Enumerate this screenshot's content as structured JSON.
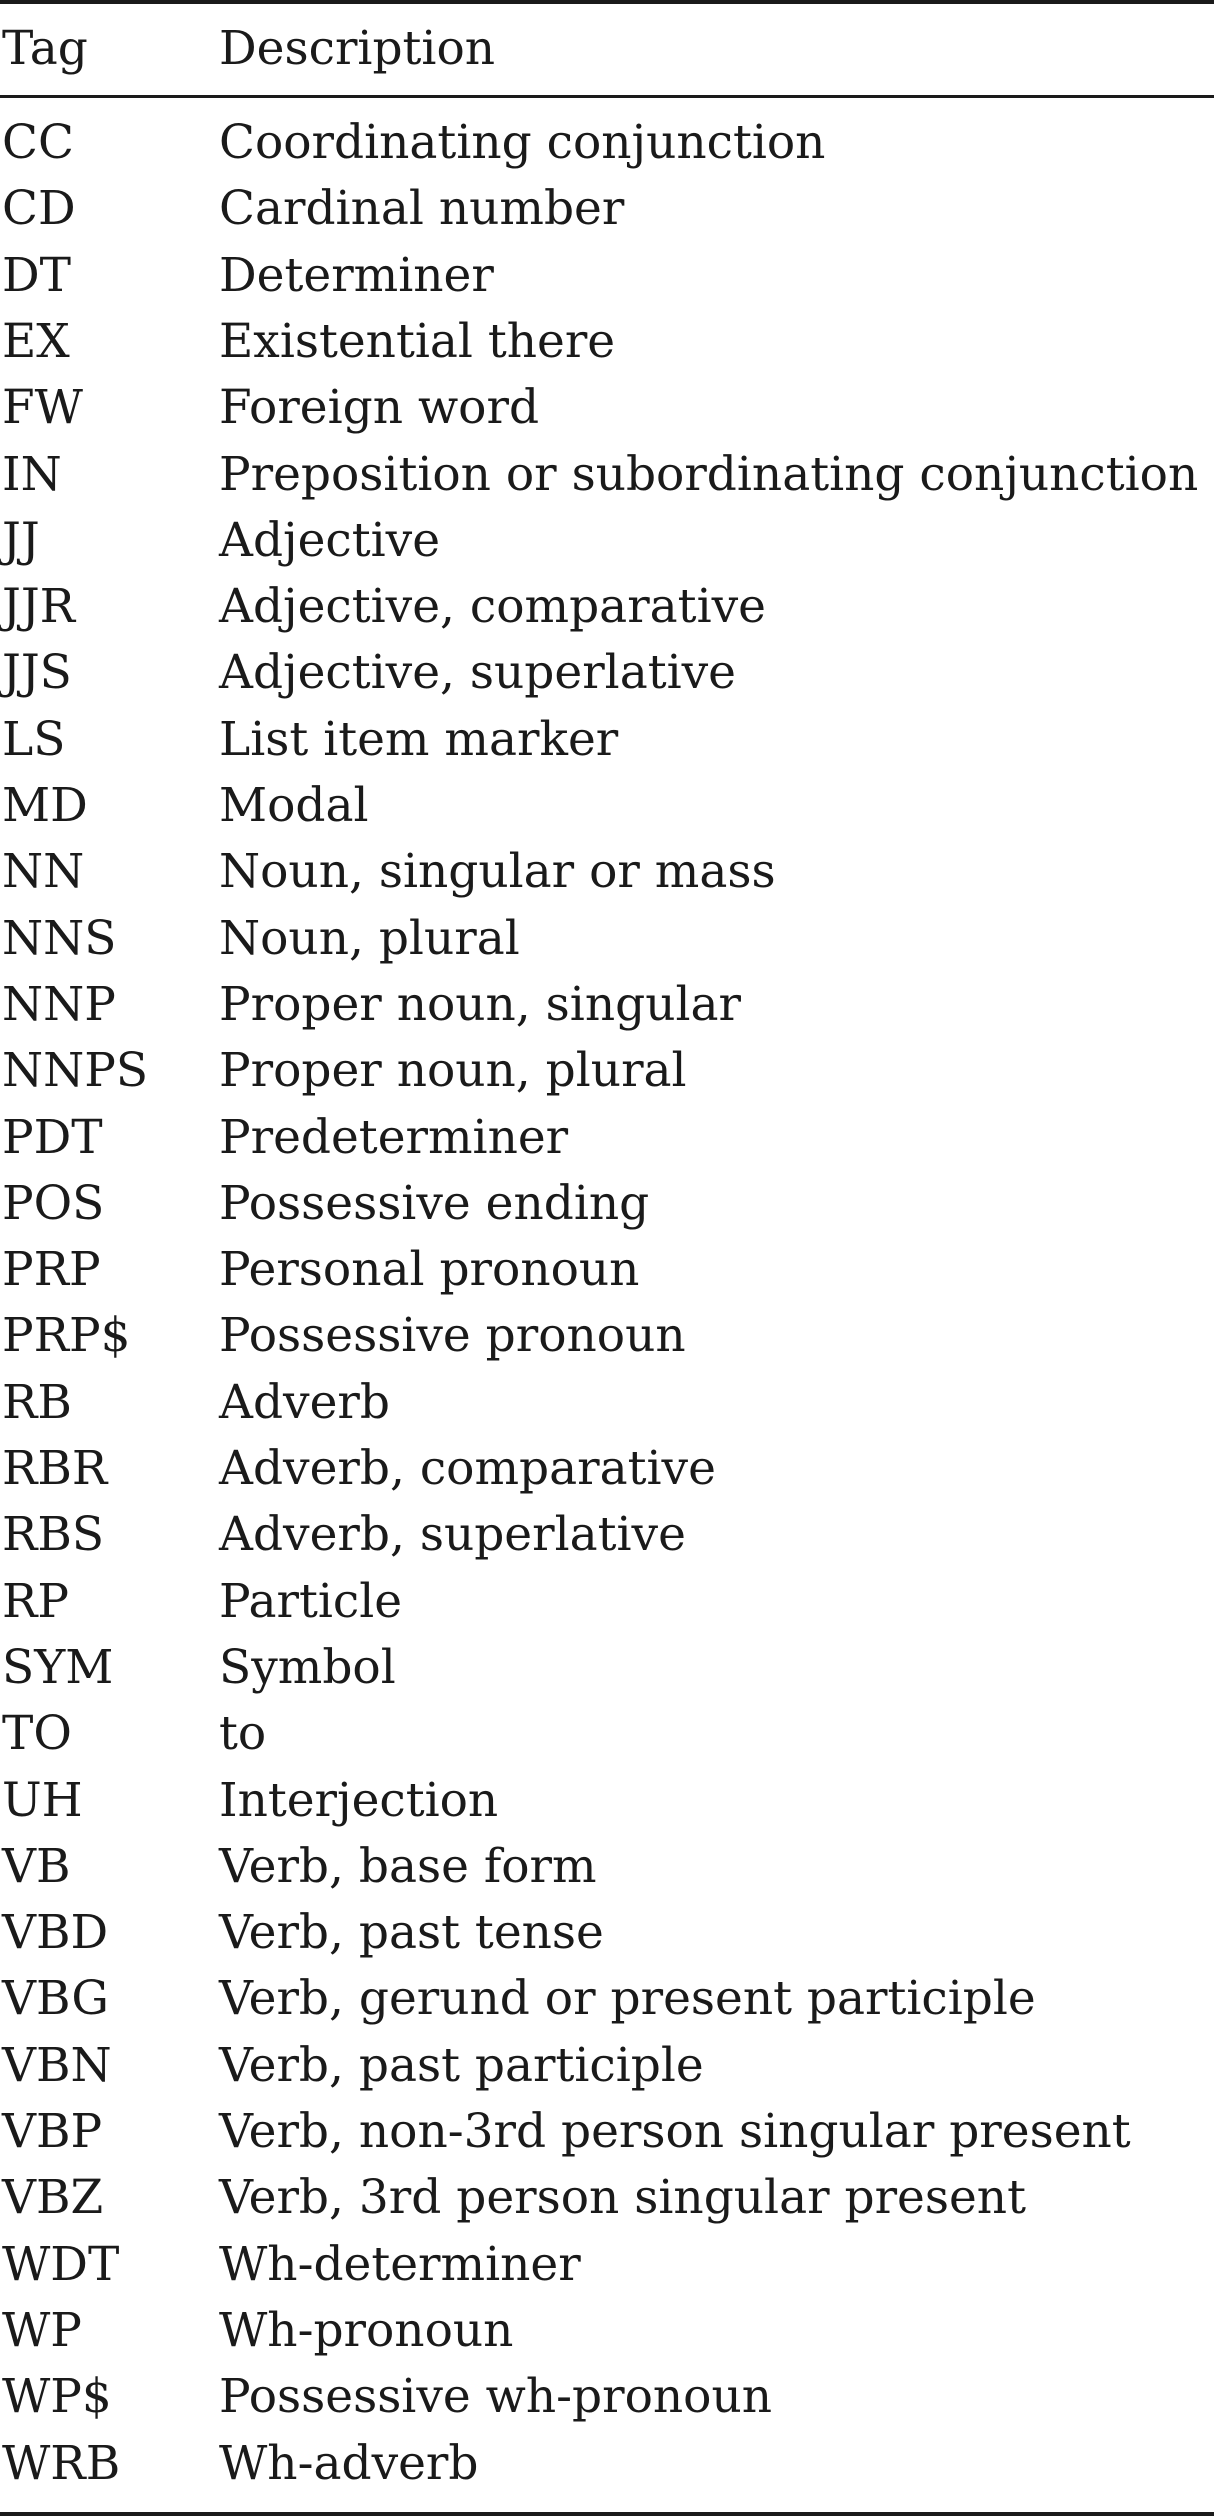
{
  "table": {
    "header": {
      "tag": "Tag",
      "description": "Description"
    },
    "rows": [
      {
        "tag": "CC",
        "description": "Coordinating conjunction"
      },
      {
        "tag": "CD",
        "description": "Cardinal number"
      },
      {
        "tag": "DT",
        "description": "Determiner"
      },
      {
        "tag": "EX",
        "description": "Existential there"
      },
      {
        "tag": "FW",
        "description": "Foreign word"
      },
      {
        "tag": "IN",
        "description": "Preposition or subordinating conjunction"
      },
      {
        "tag": "JJ",
        "description": "Adjective"
      },
      {
        "tag": "JJR",
        "description": "Adjective, comparative"
      },
      {
        "tag": "JJS",
        "description": "Adjective, superlative"
      },
      {
        "tag": "LS",
        "description": "List item marker"
      },
      {
        "tag": "MD",
        "description": "Modal"
      },
      {
        "tag": "NN",
        "description": "Noun, singular or mass"
      },
      {
        "tag": "NNS",
        "description": "Noun, plural"
      },
      {
        "tag": "NNP",
        "description": "Proper noun, singular"
      },
      {
        "tag": "NNPS",
        "description": "Proper noun, plural"
      },
      {
        "tag": "PDT",
        "description": "Predeterminer"
      },
      {
        "tag": "POS",
        "description": "Possessive ending"
      },
      {
        "tag": "PRP",
        "description": "Personal pronoun"
      },
      {
        "tag": "PRP$",
        "description": "Possessive pronoun"
      },
      {
        "tag": "RB",
        "description": "Adverb"
      },
      {
        "tag": "RBR",
        "description": "Adverb, comparative"
      },
      {
        "tag": "RBS",
        "description": "Adverb, superlative"
      },
      {
        "tag": "RP",
        "description": "Particle"
      },
      {
        "tag": "SYM",
        "description": "Symbol"
      },
      {
        "tag": "TO",
        "description": "to"
      },
      {
        "tag": "UH",
        "description": "Interjection"
      },
      {
        "tag": "VB",
        "description": "Verb, base form"
      },
      {
        "tag": "VBD",
        "description": "Verb, past tense"
      },
      {
        "tag": "VBG",
        "description": "Verb, gerund or present participle"
      },
      {
        "tag": "VBN",
        "description": "Verb, past participle"
      },
      {
        "tag": "VBP",
        "description": "Verb, non-3rd person singular present"
      },
      {
        "tag": "VBZ",
        "description": "Verb, 3rd person singular present"
      },
      {
        "tag": "WDT",
        "description": "Wh-determiner"
      },
      {
        "tag": "WP",
        "description": "Wh-pronoun"
      },
      {
        "tag": "WP$",
        "description": "Possessive wh-pronoun"
      },
      {
        "tag": "WRB",
        "description": "Wh-adverb"
      }
    ]
  }
}
